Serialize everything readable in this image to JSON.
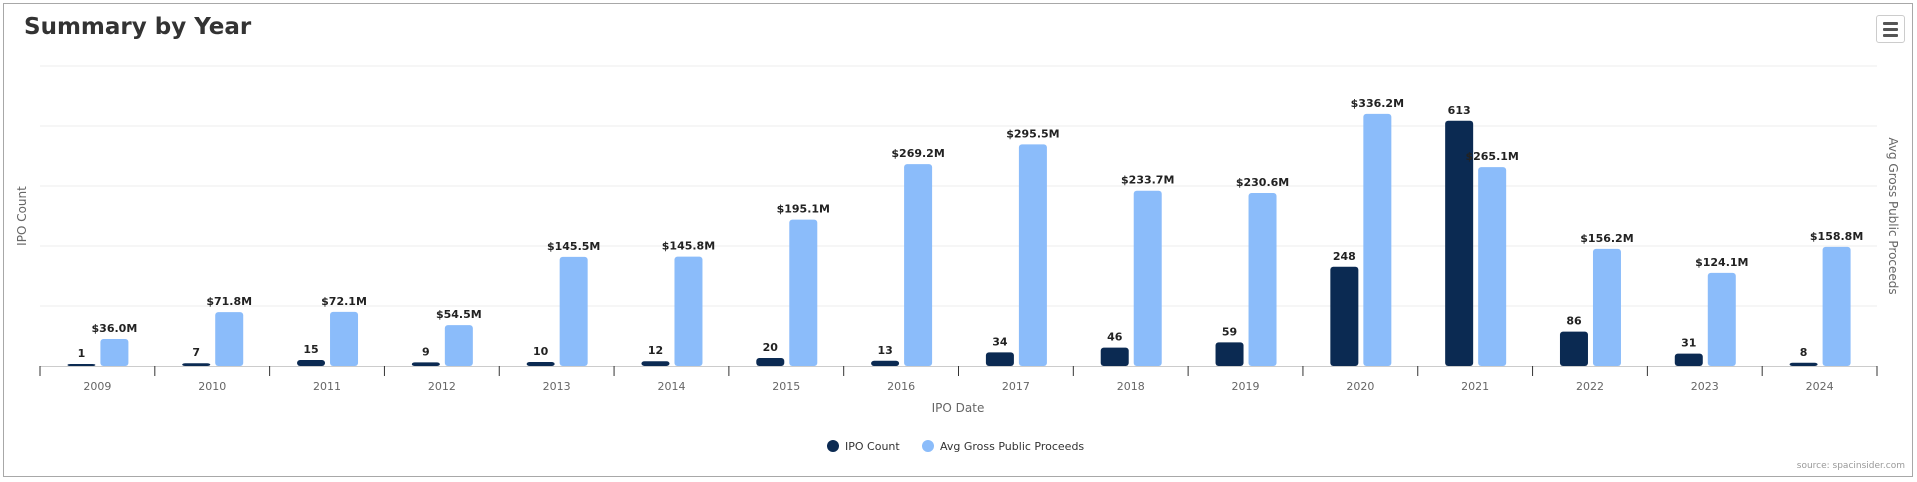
{
  "title": "Summary by Year",
  "source": "source: spacinsider.com",
  "menu_icon": "hamburger-icon",
  "chart_data": {
    "type": "bar",
    "title": "Summary by Year",
    "xlabel": "IPO Date",
    "ylabel": "IPO Count",
    "y2label": "Avg Gross Public Proceeds",
    "ylim": [
      0,
      750
    ],
    "y2lim": [
      0,
      400
    ],
    "grid": true,
    "legend_position": "bottom-center",
    "categories": [
      "2009",
      "2010",
      "2011",
      "2012",
      "2013",
      "2014",
      "2015",
      "2016",
      "2017",
      "2018",
      "2019",
      "2020",
      "2021",
      "2022",
      "2023",
      "2024"
    ],
    "series": [
      {
        "name": "IPO Count",
        "color": "#0b2a52",
        "axis": "left",
        "values": [
          1,
          7,
          15,
          9,
          10,
          12,
          20,
          13,
          34,
          46,
          59,
          248,
          613,
          86,
          31,
          8
        ],
        "labels": [
          "1",
          "7",
          "15",
          "9",
          "10",
          "12",
          "20",
          "13",
          "34",
          "46",
          "59",
          "248",
          "613",
          "86",
          "31",
          "8"
        ]
      },
      {
        "name": "Avg Gross Public Proceeds",
        "color": "#8bbcfa",
        "axis": "right",
        "values": [
          36.0,
          71.8,
          72.1,
          54.5,
          145.5,
          145.8,
          195.1,
          269.2,
          295.5,
          233.7,
          230.6,
          336.2,
          265.1,
          156.2,
          124.1,
          158.8
        ],
        "labels": [
          "$36.0M",
          "$71.8M",
          "$72.1M",
          "$54.5M",
          "$145.5M",
          "$145.8M",
          "$195.1M",
          "$269.2M",
          "$295.5M",
          "$233.7M",
          "$230.6M",
          "$336.2M",
          "$265.1M",
          "$156.2M",
          "$124.1M",
          "$158.8M"
        ]
      }
    ]
  }
}
